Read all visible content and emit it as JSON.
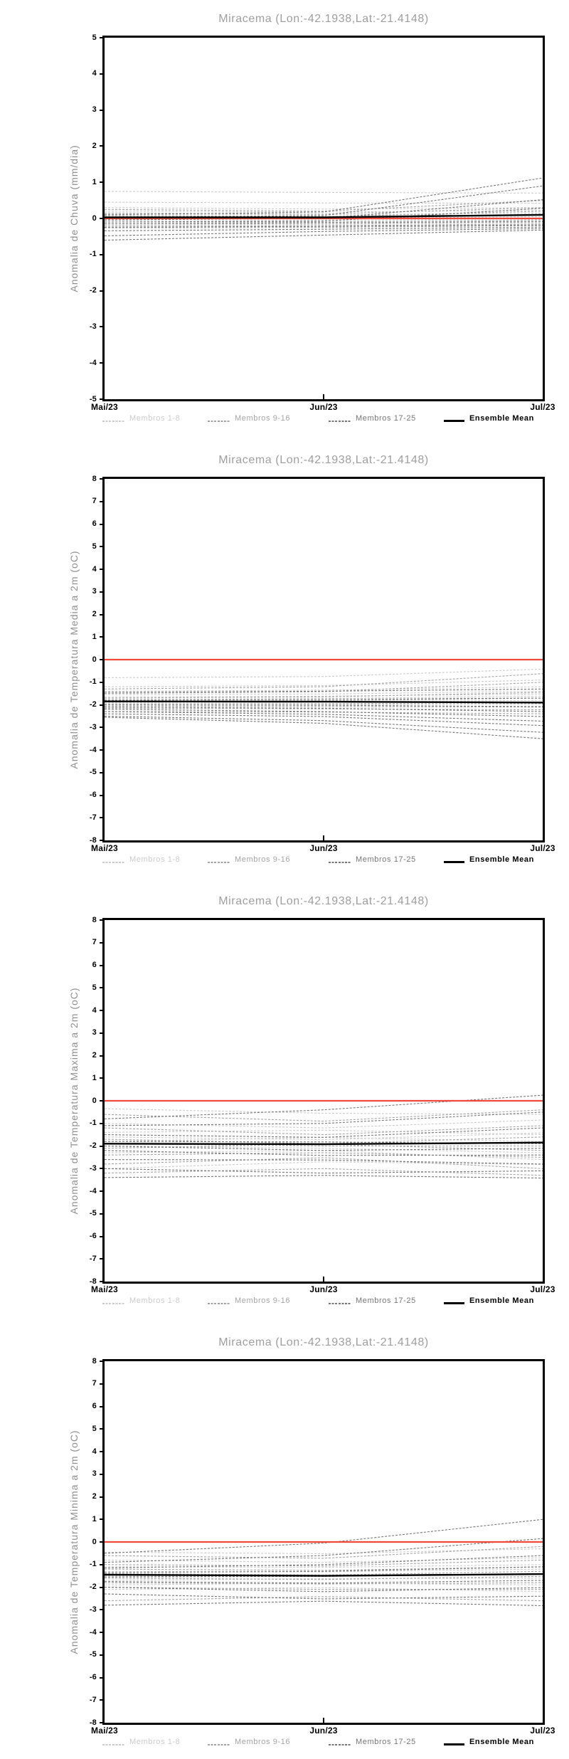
{
  "page": {
    "background": "#ffffff"
  },
  "colors": {
    "title": "#9e9e9e",
    "ylabel": "#8f8f8f",
    "frame": "#000000",
    "tick_label": "#000000",
    "zero_line": "#f0493c",
    "mean_line": "#000000",
    "members_1_8": "#cbcbcb",
    "members_9_16": "#a4a4a4",
    "members_17_25": "#767676"
  },
  "legend": {
    "items": [
      {
        "label": "Membros 1-8",
        "color": "#cbcbcb",
        "style": "dashed"
      },
      {
        "label": "Membros 9-16",
        "color": "#a4a4a4",
        "style": "dashed"
      },
      {
        "label": "Membros 17-25",
        "color": "#767676",
        "style": "dashed"
      },
      {
        "label": "Ensemble Mean",
        "color": "#000000",
        "style": "solid"
      }
    ]
  },
  "chart_data": [
    {
      "type": "line",
      "title": "Miracema (Lon:-42.1938,Lat:-21.4148)",
      "ylabel": "Anomalia de Chuva (mm/dia)",
      "ylim": [
        -5,
        5
      ],
      "y_tick_step": 1,
      "x_labels": [
        "Mai/23",
        "Jun/23",
        "Jul/23"
      ],
      "grid": false,
      "legend_position": "bottom",
      "zero_line_value": 0,
      "ensemble_mean": [
        0.03,
        0.03,
        0.1
      ],
      "members_1_8": [
        [
          0.75,
          0.72,
          0.7
        ],
        [
          0.45,
          0.43,
          0.42
        ],
        [
          0.3,
          0.26,
          0.3
        ],
        [
          0.2,
          0.18,
          0.22
        ],
        [
          0.12,
          0.1,
          0.15
        ],
        [
          0.05,
          0.04,
          0.1
        ],
        [
          0.0,
          0.0,
          0.05
        ],
        [
          -0.06,
          -0.06,
          0.0
        ]
      ],
      "members_9_16": [
        [
          0.25,
          0.2,
          0.5
        ],
        [
          0.15,
          0.12,
          0.3
        ],
        [
          0.08,
          0.05,
          0.2
        ],
        [
          0.0,
          -0.02,
          0.12
        ],
        [
          -0.1,
          -0.1,
          -0.04
        ],
        [
          -0.15,
          -0.16,
          -0.1
        ],
        [
          -0.2,
          -0.2,
          -0.15
        ],
        [
          -0.26,
          -0.25,
          -0.2
        ]
      ],
      "members_17_25": [
        [
          0.1,
          0.18,
          1.12
        ],
        [
          0.02,
          0.08,
          0.9
        ],
        [
          -0.04,
          0.0,
          0.52
        ],
        [
          -0.1,
          -0.07,
          0.28
        ],
        [
          -0.15,
          -0.12,
          -0.08
        ],
        [
          -0.24,
          -0.22,
          -0.18
        ],
        [
          -0.34,
          -0.3,
          -0.24
        ],
        [
          -0.48,
          -0.36,
          -0.28
        ],
        [
          -0.6,
          -0.46,
          -0.32
        ]
      ]
    },
    {
      "type": "line",
      "title": "Miracema (Lon:-42.1938,Lat:-21.4148)",
      "ylabel": "Anomalia de Temperatura Media a 2m (oC)",
      "ylim": [
        -8,
        8
      ],
      "y_tick_step": 1,
      "x_labels": [
        "Mai/23",
        "Jun/23",
        "Jul/23"
      ],
      "grid": false,
      "legend_position": "bottom",
      "zero_line_value": 0,
      "ensemble_mean": [
        -1.85,
        -1.86,
        -1.9
      ],
      "members_1_8": [
        [
          -0.8,
          -0.75,
          -0.42
        ],
        [
          -1.2,
          -1.15,
          -0.9
        ],
        [
          -1.4,
          -1.35,
          -1.2
        ],
        [
          -1.55,
          -1.52,
          -1.4
        ],
        [
          -1.65,
          -1.62,
          -1.52
        ],
        [
          -1.75,
          -1.72,
          -1.62
        ],
        [
          -1.9,
          -1.88,
          -1.8
        ],
        [
          -2.0,
          -2.0,
          -1.92
        ]
      ],
      "members_9_16": [
        [
          -1.3,
          -1.2,
          -0.62
        ],
        [
          -1.5,
          -1.42,
          -1.0
        ],
        [
          -1.7,
          -1.65,
          -1.45
        ],
        [
          -1.85,
          -1.82,
          -1.7
        ],
        [
          -1.95,
          -1.95,
          -1.95
        ],
        [
          -2.05,
          -2.08,
          -2.1
        ],
        [
          -2.15,
          -2.18,
          -2.22
        ],
        [
          -2.3,
          -2.32,
          -2.4
        ]
      ],
      "members_17_25": [
        [
          -1.45,
          -1.4,
          -1.3
        ],
        [
          -1.8,
          -1.76,
          -1.7
        ],
        [
          -2.0,
          -2.02,
          -2.08
        ],
        [
          -2.1,
          -2.15,
          -2.3
        ],
        [
          -2.2,
          -2.3,
          -2.52
        ],
        [
          -2.3,
          -2.42,
          -2.72
        ],
        [
          -2.4,
          -2.52,
          -2.92
        ],
        [
          -2.5,
          -2.7,
          -3.22
        ],
        [
          -2.55,
          -2.82,
          -3.5
        ]
      ]
    },
    {
      "type": "line",
      "title": "Miracema (Lon:-42.1938,Lat:-21.4148)",
      "ylabel": "Anomalia de Temperatura Maxima a 2m (oC)",
      "ylim": [
        -8,
        8
      ],
      "y_tick_step": 1,
      "x_labels": [
        "Mai/23",
        "Jun/23",
        "Jul/23"
      ],
      "grid": false,
      "legend_position": "bottom",
      "zero_line_value": 0,
      "ensemble_mean": [
        -1.9,
        -1.92,
        -1.85
      ],
      "members_1_8": [
        [
          -0.35,
          -0.55,
          -0.6
        ],
        [
          -1.0,
          -1.2,
          -0.85
        ],
        [
          -1.4,
          -1.3,
          -1.5
        ],
        [
          -1.6,
          -1.72,
          -1.42
        ],
        [
          -1.8,
          -1.62,
          -1.8
        ],
        [
          -2.0,
          -2.1,
          -2.3
        ],
        [
          -2.3,
          -2.2,
          -2.6
        ],
        [
          -3.0,
          -2.7,
          -2.82
        ]
      ],
      "members_9_16": [
        [
          -0.6,
          -0.9,
          -0.4
        ],
        [
          -1.2,
          -1.5,
          -1.1
        ],
        [
          -1.7,
          -1.9,
          -1.6
        ],
        [
          -1.9,
          -2.0,
          -2.0
        ],
        [
          -2.1,
          -1.92,
          -2.2
        ],
        [
          -2.4,
          -2.3,
          -2.5
        ],
        [
          -2.8,
          -2.52,
          -3.0
        ],
        [
          -3.2,
          -3.0,
          -3.3
        ]
      ],
      "members_17_25": [
        [
          -0.8,
          -0.4,
          0.25
        ],
        [
          -1.1,
          -1.0,
          -0.5
        ],
        [
          -1.5,
          -1.62,
          -1.2
        ],
        [
          -1.8,
          -1.82,
          -1.9
        ],
        [
          -2.0,
          -2.2,
          -2.1
        ],
        [
          -2.2,
          -2.42,
          -2.4
        ],
        [
          -2.6,
          -2.62,
          -2.8
        ],
        [
          -3.0,
          -3.2,
          -3.1
        ],
        [
          -3.4,
          -3.3,
          -3.42
        ]
      ]
    },
    {
      "type": "line",
      "title": "Miracema (Lon:-42.1938,Lat:-21.4148)",
      "ylabel": "Anomalia de Temperatura Minima a 2m (oC)",
      "ylim": [
        -8,
        8
      ],
      "y_tick_step": 1,
      "x_labels": [
        "Mai/23",
        "Jun/23",
        "Jul/23"
      ],
      "grid": false,
      "legend_position": "bottom",
      "zero_line_value": 0,
      "ensemble_mean": [
        -1.45,
        -1.5,
        -1.42
      ],
      "members_1_8": [
        [
          -0.45,
          -0.52,
          -0.3
        ],
        [
          -0.8,
          -0.9,
          -0.7
        ],
        [
          -1.1,
          -1.12,
          -1.0
        ],
        [
          -1.3,
          -1.32,
          -1.2
        ],
        [
          -1.5,
          -1.52,
          -1.4
        ],
        [
          -1.7,
          -1.62,
          -1.6
        ],
        [
          -1.9,
          -1.82,
          -1.9
        ],
        [
          -2.1,
          -2.02,
          -2.2
        ]
      ],
      "members_9_16": [
        [
          -0.6,
          -0.72,
          -0.2
        ],
        [
          -1.0,
          -1.06,
          -0.8
        ],
        [
          -1.2,
          -1.26,
          -1.1
        ],
        [
          -1.4,
          -1.46,
          -1.3
        ],
        [
          -1.6,
          -1.66,
          -1.52
        ],
        [
          -1.8,
          -1.86,
          -1.8
        ],
        [
          -2.0,
          -2.1,
          -2.1
        ],
        [
          -2.6,
          -2.42,
          -2.6
        ]
      ],
      "members_17_25": [
        [
          -0.5,
          -0.05,
          1.0
        ],
        [
          -0.9,
          -0.6,
          0.15
        ],
        [
          -1.15,
          -1.0,
          -0.6
        ],
        [
          -1.35,
          -1.3,
          -1.1
        ],
        [
          -1.55,
          -1.52,
          -1.42
        ],
        [
          -1.75,
          -1.82,
          -1.7
        ],
        [
          -2.0,
          -2.2,
          -2.02
        ],
        [
          -2.3,
          -2.52,
          -2.4
        ],
        [
          -2.8,
          -2.62,
          -2.82
        ]
      ]
    }
  ]
}
